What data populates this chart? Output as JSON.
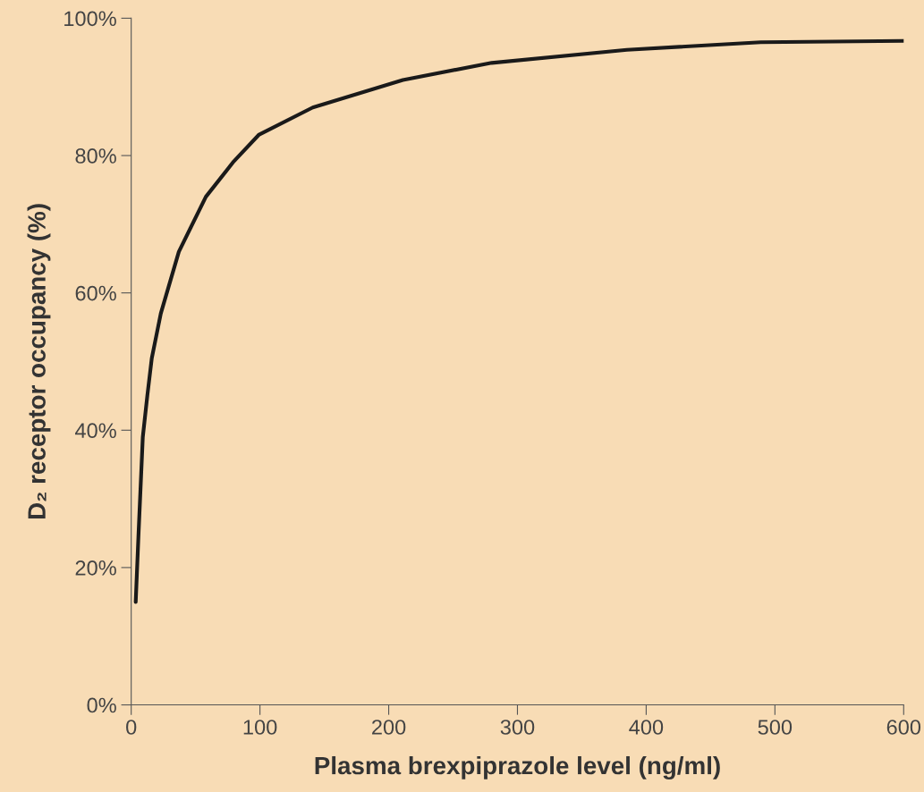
{
  "chart_data": {
    "type": "line",
    "xlabel": "Plasma brexpiprazole level (ng/ml)",
    "ylabel": "D₂ receptor occupancy (%)",
    "series": [
      {
        "color": "#1a1a1a",
        "x": [
          3.5,
          5.6,
          9,
          12.5,
          16,
          23,
          37,
          58,
          79,
          99,
          141,
          211,
          280,
          385,
          489,
          600
        ],
        "values": [
          15,
          24.5,
          39,
          45,
          50.5,
          57,
          66,
          74,
          79,
          83,
          87,
          91,
          93.5,
          95.4,
          96.5,
          96.7
        ]
      }
    ],
    "xlim": [
      0,
      600
    ],
    "xticks": [
      0,
      100,
      200,
      300,
      400,
      500,
      600
    ],
    "ylim": [
      0,
      100
    ],
    "yticks": [
      {
        "value": 0,
        "label": "0%"
      },
      {
        "value": 20,
        "label": "20%"
      },
      {
        "value": 40,
        "label": "40%"
      },
      {
        "value": 60,
        "label": "60%"
      },
      {
        "value": 80,
        "label": "80%"
      },
      {
        "value": 100,
        "label": "100%"
      }
    ],
    "grid": false,
    "legend": false,
    "marker": "none",
    "line_style": "solid"
  }
}
